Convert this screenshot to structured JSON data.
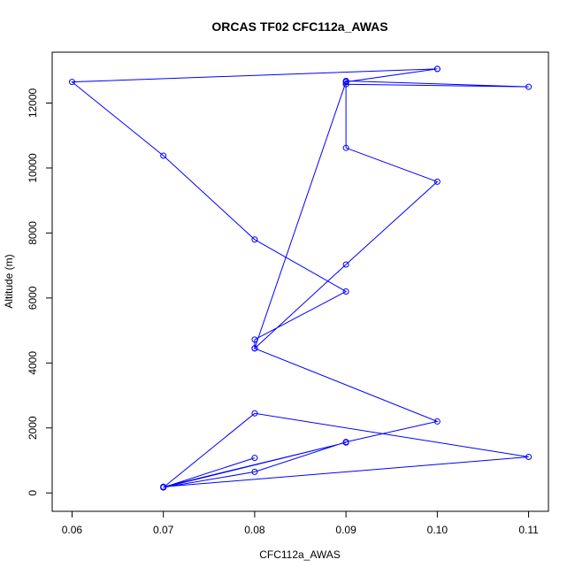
{
  "chart_data": {
    "type": "line",
    "title": "ORCAS TF02 CFC112a_AWAS",
    "xlabel": "CFC112a_AWAS",
    "ylabel": "Altitude (m)",
    "xlim": [
      0.06,
      0.11
    ],
    "ylim": [
      0,
      13000
    ],
    "x_ticks": [
      "0.06",
      "0.07",
      "0.08",
      "0.09",
      "0.10",
      "0.11"
    ],
    "y_ticks": [
      "0",
      "2000",
      "4000",
      "6000",
      "8000",
      "10000",
      "12000"
    ],
    "grid": false,
    "series_color": "#0000ff",
    "series": [
      {
        "x": [
          0.1,
          0.06,
          0.07,
          0.08,
          0.09,
          0.08,
          0.08,
          0.09,
          0.1,
          0.09,
          0.09,
          0.09,
          0.11,
          0.09,
          0.09,
          0.1,
          0.09,
          0.08,
          0.08,
          0.1,
          0.09,
          0.08,
          0.07,
          0.09,
          0.07,
          0.11,
          0.08,
          0.07,
          0.08
        ],
        "y": [
          13050,
          12650,
          10380,
          7800,
          6200,
          4720,
          4450,
          7030,
          9580,
          10620,
          12580,
          12680,
          12500,
          12580,
          12650,
          13050,
          12650,
          4450,
          4450,
          2200,
          1570,
          650,
          170,
          1550,
          190,
          1110,
          2450,
          170,
          1080
        ]
      }
    ]
  }
}
